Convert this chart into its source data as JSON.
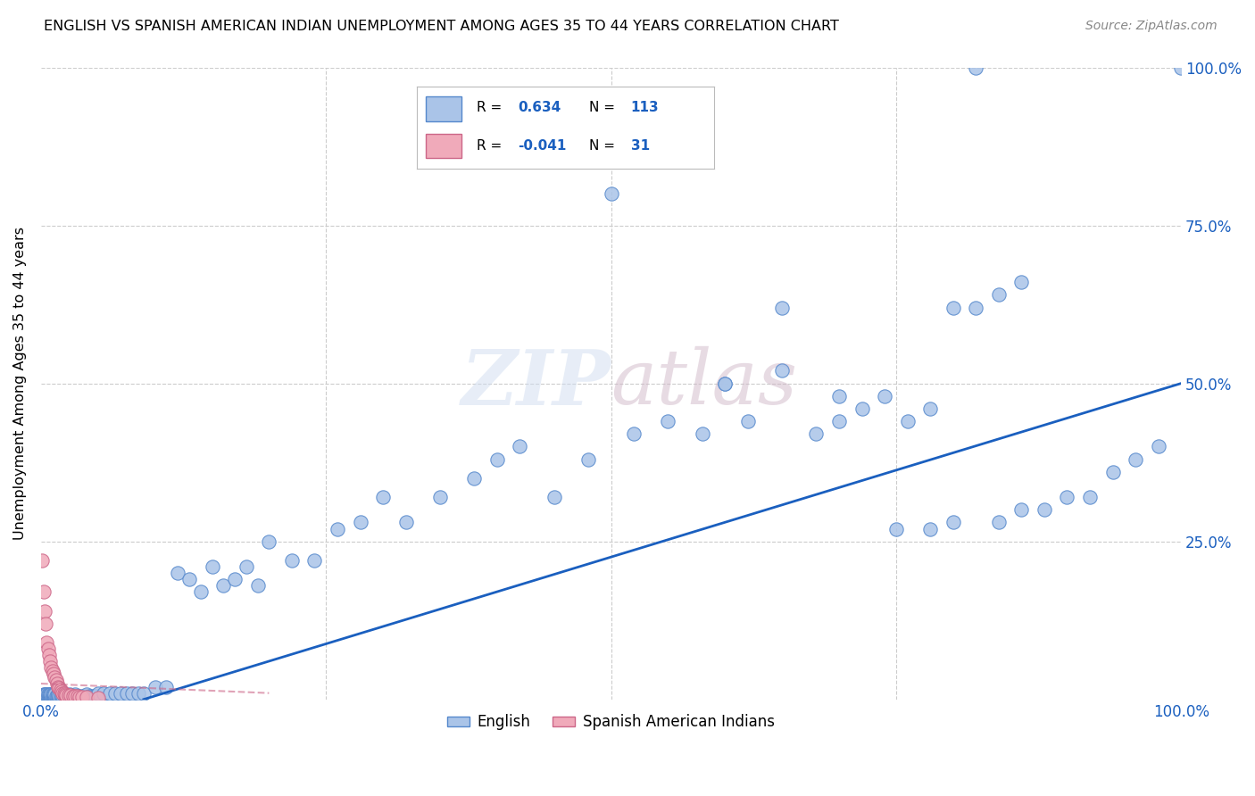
{
  "title": "ENGLISH VS SPANISH AMERICAN INDIAN UNEMPLOYMENT AMONG AGES 35 TO 44 YEARS CORRELATION CHART",
  "source": "Source: ZipAtlas.com",
  "ylabel": "Unemployment Among Ages 35 to 44 years",
  "xlim": [
    0,
    1.0
  ],
  "ylim": [
    0,
    1.0
  ],
  "background_color": "#ffffff",
  "watermark": "ZIPatlas",
  "english_color": "#aac4e8",
  "spanish_color": "#f0aaba",
  "english_edge_color": "#5588cc",
  "spanish_edge_color": "#cc6688",
  "trend_color": "#1a5fbf",
  "R_english": 0.634,
  "N_english": 113,
  "R_spanish": -0.041,
  "N_spanish": 31,
  "grid_color": "#cccccc",
  "marker_size": 9,
  "legend_R_color": "#1a5fbf",
  "legend_N_color": "#1a5fbf",
  "eng_x": [
    0.001,
    0.002,
    0.002,
    0.003,
    0.003,
    0.004,
    0.004,
    0.005,
    0.005,
    0.006,
    0.006,
    0.007,
    0.007,
    0.008,
    0.008,
    0.009,
    0.009,
    0.01,
    0.01,
    0.011,
    0.011,
    0.012,
    0.012,
    0.013,
    0.014,
    0.015,
    0.015,
    0.016,
    0.017,
    0.018,
    0.019,
    0.02,
    0.021,
    0.022,
    0.023,
    0.025,
    0.026,
    0.028,
    0.03,
    0.032,
    0.034,
    0.036,
    0.038,
    0.04,
    0.042,
    0.044,
    0.046,
    0.048,
    0.05,
    0.055,
    0.06,
    0.065,
    0.07,
    0.075,
    0.08,
    0.085,
    0.09,
    0.1,
    0.11,
    0.12,
    0.13,
    0.14,
    0.15,
    0.16,
    0.17,
    0.18,
    0.19,
    0.2,
    0.22,
    0.24,
    0.26,
    0.28,
    0.3,
    0.32,
    0.35,
    0.38,
    0.4,
    0.42,
    0.45,
    0.48,
    0.5,
    0.52,
    0.55,
    0.58,
    0.6,
    0.62,
    0.65,
    0.68,
    0.7,
    0.72,
    0.74,
    0.76,
    0.78,
    0.8,
    0.82,
    0.84,
    0.86,
    0.88,
    0.9,
    0.92,
    0.94,
    0.96,
    0.98,
    1.0,
    0.75,
    0.78,
    0.8,
    0.82,
    0.84,
    0.86,
    0.6,
    0.65,
    0.7
  ],
  "eng_y": [
    0.005,
    0.005,
    0.008,
    0.005,
    0.008,
    0.005,
    0.008,
    0.005,
    0.008,
    0.005,
    0.008,
    0.005,
    0.008,
    0.005,
    0.008,
    0.005,
    0.008,
    0.005,
    0.008,
    0.005,
    0.008,
    0.005,
    0.008,
    0.005,
    0.005,
    0.005,
    0.008,
    0.005,
    0.005,
    0.005,
    0.005,
    0.005,
    0.005,
    0.005,
    0.005,
    0.008,
    0.005,
    0.005,
    0.008,
    0.005,
    0.005,
    0.005,
    0.005,
    0.008,
    0.005,
    0.005,
    0.005,
    0.005,
    0.01,
    0.01,
    0.01,
    0.01,
    0.01,
    0.01,
    0.01,
    0.01,
    0.01,
    0.02,
    0.02,
    0.2,
    0.19,
    0.17,
    0.21,
    0.18,
    0.19,
    0.21,
    0.18,
    0.25,
    0.22,
    0.22,
    0.27,
    0.28,
    0.32,
    0.28,
    0.32,
    0.35,
    0.38,
    0.4,
    0.32,
    0.38,
    0.8,
    0.42,
    0.44,
    0.42,
    0.5,
    0.44,
    0.62,
    0.42,
    0.44,
    0.46,
    0.48,
    0.44,
    0.46,
    0.28,
    1.0,
    0.28,
    0.3,
    0.3,
    0.32,
    0.32,
    0.36,
    0.38,
    0.4,
    1.0,
    0.27,
    0.27,
    0.62,
    0.62,
    0.64,
    0.66,
    0.5,
    0.52,
    0.48
  ],
  "spa_x": [
    0.001,
    0.002,
    0.003,
    0.004,
    0.005,
    0.006,
    0.007,
    0.008,
    0.009,
    0.01,
    0.011,
    0.012,
    0.013,
    0.014,
    0.015,
    0.016,
    0.017,
    0.018,
    0.019,
    0.02,
    0.021,
    0.022,
    0.024,
    0.026,
    0.028,
    0.03,
    0.032,
    0.034,
    0.036,
    0.04,
    0.05
  ],
  "spa_y": [
    0.22,
    0.17,
    0.14,
    0.12,
    0.09,
    0.08,
    0.07,
    0.06,
    0.05,
    0.045,
    0.04,
    0.035,
    0.03,
    0.025,
    0.02,
    0.018,
    0.015,
    0.012,
    0.01,
    0.009,
    0.008,
    0.007,
    0.007,
    0.006,
    0.005,
    0.005,
    0.005,
    0.004,
    0.004,
    0.004,
    0.003
  ],
  "eng_trend_x": [
    0.09,
    1.0
  ],
  "eng_trend_y": [
    0.0,
    0.5
  ],
  "spa_trend_x": [
    0.0,
    0.2
  ],
  "spa_trend_y": [
    0.025,
    0.01
  ]
}
